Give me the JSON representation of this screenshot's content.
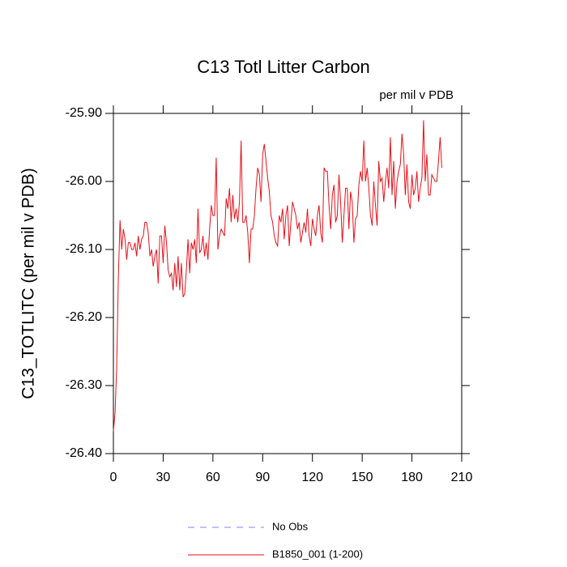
{
  "chart_data": {
    "type": "line",
    "title": "C13 Totl Litter Carbon",
    "subtitle": "per mil v PDB",
    "ylabel": "C13_TOTLITC  (per mil v PDB)",
    "xlim": [
      0,
      210
    ],
    "xticks": [
      0,
      30,
      60,
      90,
      120,
      150,
      180,
      210
    ],
    "ylim": [
      -26.4,
      -25.9
    ],
    "yticks": [
      {
        "value": -26.4,
        "label": "-26.40"
      },
      {
        "value": -26.3,
        "label": "-26.30"
      },
      {
        "value": -26.2,
        "label": "-26.20"
      },
      {
        "value": -26.1,
        "label": "-26.10"
      },
      {
        "value": -26.0,
        "label": "-26.00"
      },
      {
        "value": -25.9,
        "label": "-25.90"
      }
    ],
    "reference": {
      "name": "No Obs",
      "color": "#8080ff",
      "dash": "8 7"
    },
    "x": [
      0,
      1,
      2,
      3,
      4,
      5,
      6,
      7,
      8,
      9,
      10,
      11,
      12,
      13,
      14,
      15,
      16,
      17,
      18,
      19,
      20,
      21,
      22,
      23,
      24,
      25,
      26,
      27,
      28,
      29,
      30,
      31,
      32,
      33,
      34,
      35,
      36,
      37,
      38,
      39,
      40,
      41,
      42,
      43,
      44,
      45,
      46,
      47,
      48,
      49,
      50,
      51,
      52,
      53,
      54,
      55,
      56,
      57,
      58,
      59,
      60,
      61,
      62,
      63,
      64,
      65,
      66,
      67,
      68,
      69,
      70,
      71,
      72,
      73,
      74,
      75,
      76,
      77,
      78,
      79,
      80,
      81,
      82,
      83,
      84,
      85,
      86,
      87,
      88,
      89,
      90,
      91,
      92,
      93,
      94,
      95,
      96,
      97,
      98,
      99,
      100,
      101,
      102,
      103,
      104,
      105,
      106,
      107,
      108,
      109,
      110,
      111,
      112,
      113,
      114,
      115,
      116,
      117,
      118,
      119,
      120,
      121,
      122,
      123,
      124,
      125,
      126,
      127,
      128,
      129,
      130,
      131,
      132,
      133,
      134,
      135,
      136,
      137,
      138,
      139,
      140,
      141,
      142,
      143,
      144,
      145,
      146,
      147,
      148,
      149,
      150,
      151,
      152,
      153,
      154,
      155,
      156,
      157,
      158,
      159,
      160,
      161,
      162,
      163,
      164,
      165,
      166,
      167,
      168,
      169,
      170,
      171,
      172,
      173,
      174,
      175,
      176,
      177,
      178,
      179,
      180,
      181,
      182,
      183,
      184,
      185,
      186,
      187,
      188,
      189,
      190,
      191,
      192,
      193,
      194,
      195,
      196,
      197,
      198
    ],
    "series": [
      {
        "name": "B1850_001 (1-200)",
        "color": "#e8101a",
        "values": [
          -26.367,
          -26.34,
          -26.27,
          -26.14,
          -26.057,
          -26.1,
          -26.07,
          -26.085,
          -26.115,
          -26.09,
          -26.09,
          -26.1,
          -26.1,
          -26.09,
          -26.11,
          -26.08,
          -26.1,
          -26.085,
          -26.08,
          -26.06,
          -26.06,
          -26.075,
          -26.11,
          -26.1,
          -26.125,
          -26.11,
          -26.1,
          -26.15,
          -26.08,
          -26.08,
          -26.12,
          -26.065,
          -26.09,
          -26.13,
          -26.14,
          -26.135,
          -26.16,
          -26.12,
          -26.155,
          -26.11,
          -26.16,
          -26.12,
          -26.17,
          -26.165,
          -26.13,
          -26.085,
          -26.135,
          -26.09,
          -26.1,
          -26.085,
          -26.12,
          -26.04,
          -26.105,
          -26.1,
          -26.08,
          -26.11,
          -26.09,
          -26.115,
          -26.07,
          -26.035,
          -26.05,
          -26.05,
          -25.965,
          -26.1,
          -26.08,
          -26.07,
          -26.075,
          -26.08,
          -26.025,
          -26.04,
          -26.01,
          -26.06,
          -26.02,
          -26.055,
          -26.04,
          -26.06,
          -26.03,
          -25.94,
          -26.06,
          -26.06,
          -26.05,
          -26.075,
          -26.12,
          -26.07,
          -26.07,
          -26.05,
          -26.01,
          -25.98,
          -25.99,
          -26.03,
          -25.96,
          -25.945,
          -25.97,
          -25.995,
          -26.015,
          -26.05,
          -26.06,
          -26.08,
          -26.09,
          -26.095,
          -26.05,
          -26.06,
          -26.04,
          -26.085,
          -26.05,
          -26.035,
          -26.095,
          -26.06,
          -26.03,
          -26.04,
          -26.05,
          -26.07,
          -26.06,
          -26.09,
          -26.075,
          -26.06,
          -26.075,
          -26.04,
          -26.08,
          -26.095,
          -26.055,
          -26.07,
          -26.08,
          -26.05,
          -26.035,
          -26.075,
          -26.09,
          -25.98,
          -25.985,
          -25.985,
          -26.035,
          -26.07,
          -26.02,
          -26.005,
          -26.06,
          -26.05,
          -25.99,
          -26.03,
          -26.09,
          -26.05,
          -26.01,
          -26.01,
          -26.07,
          -26.015,
          -26.03,
          -26.09,
          -26.055,
          -26.05,
          -26.005,
          -25.985,
          -26.0,
          -25.94,
          -26.0,
          -25.98,
          -26.01,
          -26.05,
          -26.065,
          -26.0,
          -26.035,
          -26.065,
          -25.97,
          -26.0,
          -25.995,
          -26.03,
          -26.0,
          -25.98,
          -26.01,
          -25.935,
          -26.02,
          -25.97,
          -26.04,
          -26.0,
          -25.985,
          -25.975,
          -25.93,
          -25.96,
          -26.02,
          -25.975,
          -26.03,
          -26.04,
          -25.99,
          -26.02,
          -26.01,
          -25.985,
          -26.03,
          -26.01,
          -25.995,
          -25.91,
          -26.0,
          -25.96,
          -26.02,
          -26.02,
          -25.99,
          -25.995,
          -26.0,
          -26.0,
          -25.97,
          -25.935,
          -25.98
        ]
      }
    ]
  }
}
